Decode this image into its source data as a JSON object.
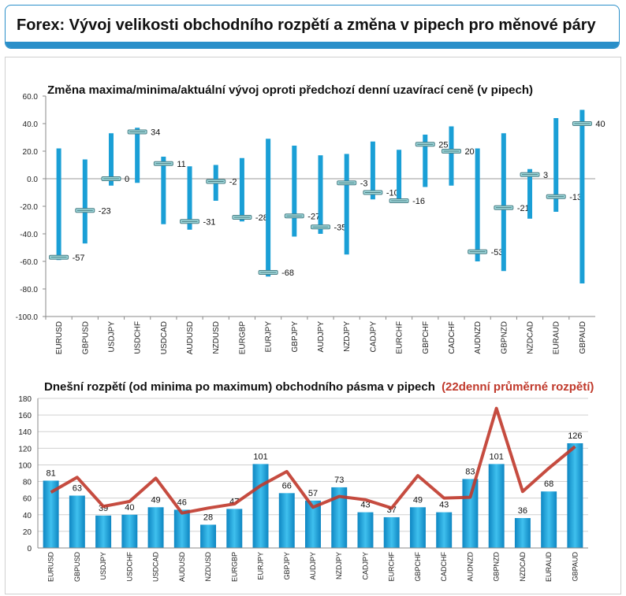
{
  "header": {
    "title": "Forex: Vývoj velikosti obchodního rozpětí a změna v pipech pro měnové páry"
  },
  "colors": {
    "accent": "#2a8fc9",
    "bar": "#1a9fd6",
    "line": "#c0392b",
    "marker": "#9fd9dc"
  },
  "chart_data": [
    {
      "type": "bar",
      "title": "Změna maxima/minima/aktuální vývoj oproti předchozí denní uzavírací ceně (v pipech)",
      "ylim": [
        -100,
        60
      ],
      "yticks": [
        "60.0",
        "40.0",
        "20.0",
        "0.0",
        "-20.0",
        "-40.0",
        "-60.0",
        "-80.0",
        "-100.0"
      ],
      "categories": [
        "EURUSD",
        "GBPUSD",
        "USDJPY",
        "USDCHF",
        "USDCAD",
        "AUDUSD",
        "NZDUSD",
        "EURGBP",
        "EURJPY",
        "GBPJPY",
        "AUDJPY",
        "NZDJPY",
        "CADJPY",
        "EURCHF",
        "GBPCHF",
        "CADCHF",
        "AUDNZD",
        "GBPNZD",
        "NZDCAD",
        "EURAUD",
        "GBPAUD"
      ],
      "series": [
        {
          "values": [
            22,
            14,
            33,
            37,
            16,
            9,
            10,
            15,
            29,
            24,
            17,
            18,
            27,
            21,
            32,
            38,
            22,
            33,
            7,
            44,
            50
          ]
        },
        {
          "values": [
            -59,
            -47,
            -5,
            -3,
            -33,
            -37,
            -16,
            -31,
            -71,
            -42,
            -40,
            -55,
            -15,
            -17,
            -6,
            -5,
            -60,
            -67,
            -29,
            -24,
            -76
          ]
        },
        {
          "values": [
            -57,
            -23,
            0,
            34,
            11,
            -31,
            -2,
            -28,
            -68,
            -27,
            -35,
            -3,
            -10,
            -16,
            25,
            20,
            -53,
            -21,
            3,
            -13,
            40
          ]
        }
      ],
      "labels": [
        "-57",
        "-23",
        "0",
        "34",
        "11",
        "-31",
        "-2",
        "-28",
        "-68",
        "-27",
        "-35",
        "-3",
        "-10",
        "-16",
        "25",
        "20",
        "-53",
        "-21",
        "3",
        "-13",
        "40"
      ]
    },
    {
      "type": "bar",
      "title": "Dnešní rozpětí (od minima po maximum) obchodního pásma v pipech",
      "title_highlight": "(22denní průměrné rozpětí)",
      "ylim": [
        0,
        180
      ],
      "yticks": [
        "180",
        "160",
        "140",
        "120",
        "100",
        "80",
        "60",
        "40",
        "20",
        "0"
      ],
      "categories": [
        "EURUSD",
        "GBPUSD",
        "USDJPY",
        "USDCHF",
        "USDCAD",
        "AUDUSD",
        "NZDUSD",
        "EURGBP",
        "EURJPY",
        "GBPJPY",
        "AUDJPY",
        "NZDJPY",
        "CADJPY",
        "EURCHF",
        "GBPCHF",
        "CADCHF",
        "AUDNZD",
        "GBPNZD",
        "NZDCAD",
        "EURAUD",
        "GBPAUD"
      ],
      "series": [
        {
          "values": [
            81,
            63,
            39,
            40,
            49,
            46,
            28,
            47,
            101,
            66,
            57,
            73,
            43,
            37,
            49,
            43,
            83,
            101,
            36,
            68,
            126
          ]
        },
        {
          "values": [
            67,
            85,
            50,
            56,
            84,
            42,
            48,
            53,
            75,
            92,
            49,
            62,
            58,
            48,
            87,
            60,
            61,
            168,
            68,
            96,
            122
          ]
        }
      ],
      "labels": [
        "81",
        "63",
        "39",
        "40",
        "49",
        "46",
        "28",
        "47",
        "101",
        "66",
        "57",
        "73",
        "43",
        "37",
        "49",
        "43",
        "83",
        "101",
        "36",
        "68",
        "126"
      ]
    }
  ]
}
